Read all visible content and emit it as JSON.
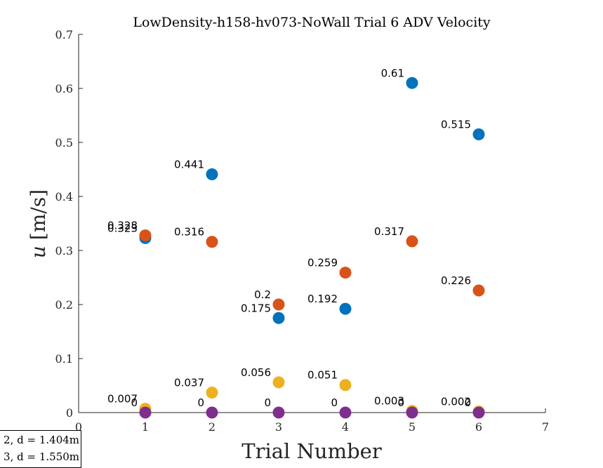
{
  "chart_data": {
    "type": "scatter",
    "title": "LowDensity-h158-hv073-NoWall Trial 6 ADV Velocity",
    "xlabel": "Trial Number",
    "ylabel_var": "u",
    "ylabel_unit": "[m/s]",
    "xlim": [
      0,
      7
    ],
    "ylim": [
      0,
      0.7
    ],
    "xticks": [
      "0",
      "1",
      "2",
      "3",
      "4",
      "5",
      "6",
      "7"
    ],
    "yticks": [
      "0",
      "0.1",
      "0.2",
      "0.3",
      "0.4",
      "0.5",
      "0.6",
      "0.7"
    ],
    "x": [
      1,
      2,
      3,
      4,
      5,
      6
    ],
    "grid": false,
    "legend_position": "bottom-left (partially clipped)",
    "series": [
      {
        "color": "#0072BD",
        "values": [
          0.323,
          0.441,
          0.175,
          0.192,
          0.61,
          0.515
        ],
        "labels": [
          "0.323",
          "0.441",
          "0.175",
          "0.192",
          "0.61",
          "0.515"
        ]
      },
      {
        "color": "#D95319",
        "values": [
          0.328,
          0.316,
          0.2,
          0.259,
          0.317,
          0.226
        ],
        "labels": [
          "0.328",
          "0.316",
          "0.2",
          "0.259",
          "0.317",
          "0.226"
        ]
      },
      {
        "color": "#EDB120",
        "values": [
          0.007,
          0.037,
          0.056,
          0.051,
          0.003,
          0.002
        ],
        "labels": [
          "0.007",
          "0.037",
          "0.056",
          "0.051",
          "0.003",
          "0.002"
        ]
      },
      {
        "color": "#7E2F8E",
        "values": [
          0,
          0,
          0,
          0,
          0,
          0
        ],
        "labels": [
          "0",
          "0",
          "0",
          "0",
          "0",
          "0"
        ]
      }
    ],
    "legend": [
      "2, d = 1.404m",
      "3, d = 1.550m"
    ]
  }
}
